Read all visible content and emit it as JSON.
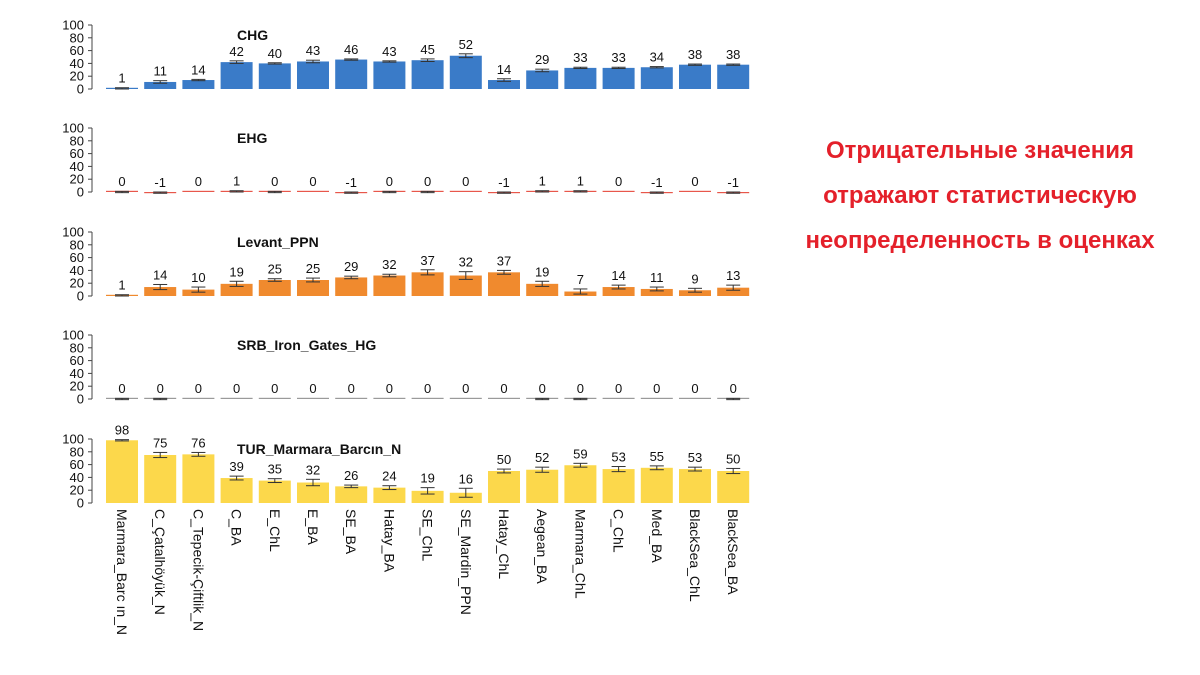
{
  "chart_data": {
    "type": "bar",
    "categories": [
      "Marmara_Barc ın_N",
      "C_Çatalhöyük_N",
      "C_Tepecik-Çiftlik_N",
      "C_BA",
      "E_ChL",
      "E_BA",
      "SE_BA",
      "Hatay_BA",
      "SE_ChL",
      "SE_Mardin_PPN",
      "Hatay_ChL",
      "Aegean_BA",
      "Marmara_ChL",
      "C_ChL",
      "Med_BA",
      "BlackSea_ChL",
      "BlackSea_BA"
    ],
    "ylim": [
      0,
      100
    ],
    "yticks": [
      0,
      20,
      40,
      60,
      80,
      100
    ],
    "panels": [
      {
        "name": "CHG",
        "color": "#3a7bc8",
        "values": [
          1,
          11,
          14,
          42,
          40,
          43,
          46,
          43,
          45,
          52,
          14,
          29,
          33,
          33,
          34,
          38,
          38
        ],
        "labels": [
          "1",
          "11",
          "14",
          "42",
          "40",
          "43",
          "46",
          "43",
          "45",
          "52",
          "14",
          "29",
          "33",
          "33",
          "34",
          "38",
          "38"
        ],
        "errors": [
          1,
          2,
          1,
          2,
          1,
          2,
          1,
          1,
          2,
          3,
          2,
          2,
          1,
          1,
          1,
          1,
          1
        ]
      },
      {
        "name": "EHG",
        "color": "#e8574b",
        "values": [
          0,
          -1,
          0,
          1,
          0,
          0,
          -1,
          0,
          0,
          0,
          -1,
          1,
          1,
          0,
          -1,
          0,
          -1
        ],
        "labels": [
          "0",
          "-1",
          "0",
          "1",
          "0",
          "0",
          "-1",
          "0",
          "0",
          "0",
          "-1",
          "1",
          "1",
          "0",
          "-1",
          "0",
          "-1"
        ],
        "errors": [
          1,
          1,
          0,
          1,
          1,
          0,
          1,
          1,
          1,
          0,
          1,
          1,
          1,
          0,
          1,
          0,
          1
        ]
      },
      {
        "name": "Levant_PPN",
        "color": "#f08a2e",
        "values": [
          1,
          14,
          10,
          19,
          25,
          25,
          29,
          32,
          37,
          32,
          37,
          19,
          7,
          14,
          11,
          9,
          13
        ],
        "labels": [
          "1",
          "14",
          "10",
          "19",
          "25",
          "25",
          "29",
          "32",
          "37",
          "32",
          "37",
          "19",
          "7",
          "14",
          "11",
          "9",
          "13"
        ],
        "errors": [
          1,
          4,
          4,
          4,
          2,
          3,
          2,
          2,
          4,
          6,
          3,
          4,
          4,
          3,
          3,
          3,
          4
        ]
      },
      {
        "name": "SRB_Iron_Gates_HG",
        "color": "#9a9a9a",
        "values": [
          0,
          0,
          0,
          0,
          0,
          0,
          0,
          0,
          0,
          0,
          0,
          0,
          0,
          0,
          0,
          0,
          0
        ],
        "labels": [
          "0",
          "0",
          "0",
          "0",
          "0",
          "0",
          "0",
          "0",
          "0",
          "0",
          "0",
          "0",
          "0",
          "0",
          "0",
          "0",
          "0"
        ],
        "errors": [
          1,
          1,
          0,
          0,
          0,
          0,
          0,
          0,
          0,
          0,
          0,
          1,
          1,
          0,
          0,
          0,
          1
        ]
      },
      {
        "name": "TUR_Marmara_Barcın_N",
        "color": "#fcd84b",
        "values": [
          98,
          75,
          76,
          39,
          35,
          32,
          26,
          24,
          19,
          16,
          50,
          52,
          59,
          53,
          55,
          53,
          50
        ],
        "labels": [
          "98",
          "75",
          "76",
          "39",
          "35",
          "32",
          "26",
          "24",
          "19",
          "16",
          "50",
          "52",
          "59",
          "53",
          "55",
          "53",
          "50"
        ],
        "errors": [
          1,
          4,
          3,
          3,
          3,
          5,
          2,
          3,
          5,
          7,
          3,
          4,
          3,
          4,
          3,
          3,
          4
        ]
      }
    ]
  },
  "note": {
    "lines": [
      "Отрицательные значения",
      "отражают статистическую",
      "неопределенность в оценках"
    ],
    "color": "#e4202a"
  }
}
